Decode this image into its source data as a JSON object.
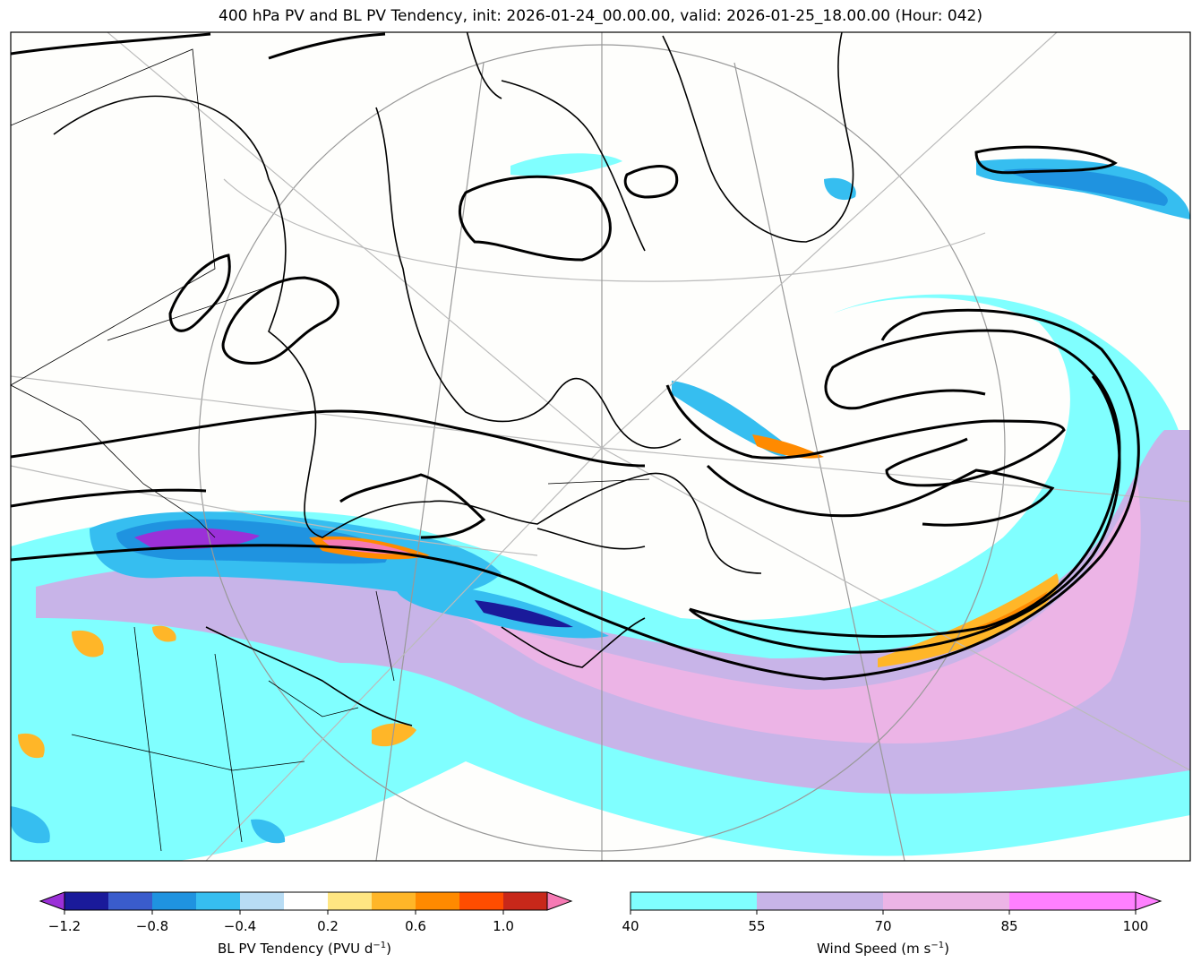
{
  "title": "400 hPa PV and BL PV Tendency, init: 2026-01-24_00.00.00, valid: 2026-01-25_18.00.00 (Hour: 042)",
  "pv_colorbar": {
    "label": "BL PV Tendency (PVU d",
    "label_exp": "−1",
    "label_close": ")",
    "tick_labels": [
      "−1.2",
      "−0.8",
      "−0.4",
      "0.2",
      "0.6",
      "1.0"
    ],
    "colors": [
      "#1a1a9a",
      "#3a5ccc",
      "#1f93e0",
      "#36bef0",
      "#b8dcf4",
      "#ffffff",
      "#ffe682",
      "#ffb628",
      "#ff8a00",
      "#ff4d00",
      "#c8281a"
    ],
    "extend_low_color": "#9b30d8",
    "extend_high_color": "#f67ab4"
  },
  "wind_colorbar": {
    "label": "Wind Speed (m s",
    "label_exp": "−1",
    "label_close": ")",
    "tick_labels": [
      "40",
      "55",
      "70",
      "85",
      "100"
    ],
    "colors": [
      "#80ffff",
      "#c8b4e8",
      "#ecb4e6",
      "#ff80ff"
    ],
    "extend_high_color": "#ff80ff"
  }
}
